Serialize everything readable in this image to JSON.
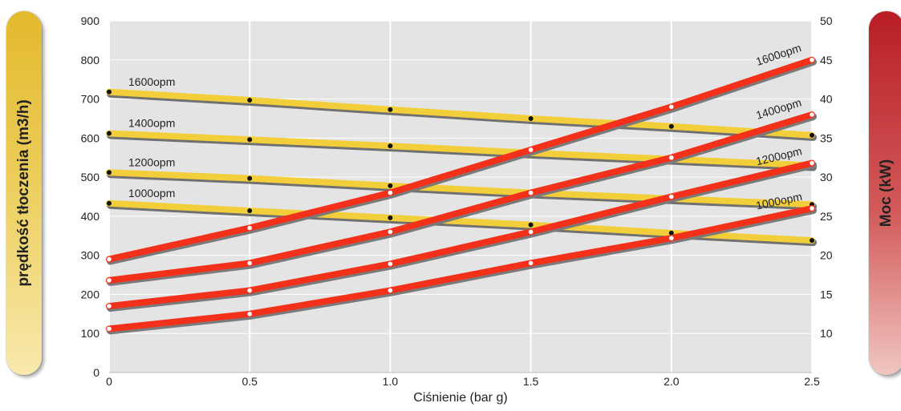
{
  "left_panel_label": "prędkość tłoczenia (m3/h)",
  "right_panel_label": "Moc (kW)",
  "chart_data": {
    "type": "line",
    "xlabel": "Ciśnienie (bar g)",
    "x": [
      0,
      0.5,
      1.0,
      1.5,
      2.0,
      2.5
    ],
    "x_tick_labels": [
      "0",
      "0.5",
      "1.0",
      "1.5",
      "2.0",
      "2.5"
    ],
    "y_left_range": [
      0,
      900
    ],
    "y_left_ticks": [
      "0",
      "100",
      "200",
      "300",
      "400",
      "500",
      "600",
      "700",
      "800",
      "900"
    ],
    "y_right_range": [
      5,
      50
    ],
    "y_right_ticks": [
      "10",
      "15",
      "20",
      "25",
      "30",
      "35",
      "40",
      "45",
      "50"
    ],
    "grid": true,
    "flow_color": "#f2cf3a",
    "power_color": "#f3301a",
    "flow_series": [
      {
        "name": "1600opm",
        "values": [
          718,
          697,
          673,
          650,
          630,
          607
        ]
      },
      {
        "name": "1400opm",
        "values": [
          612,
          596,
          580,
          562,
          546,
          530
        ]
      },
      {
        "name": "1200opm",
        "values": [
          512,
          497,
          478,
          460,
          445,
          430
        ]
      },
      {
        "name": "1000opm",
        "values": [
          433,
          414,
          396,
          378,
          357,
          338
        ]
      }
    ],
    "power_series": [
      {
        "name": "1600opm",
        "values": [
          19.5,
          23.5,
          28.0,
          33.5,
          39.0,
          45.0
        ]
      },
      {
        "name": "1400opm",
        "values": [
          16.8,
          19.0,
          23.0,
          28.0,
          32.5,
          38.0
        ]
      },
      {
        "name": "1200opm",
        "values": [
          13.5,
          15.5,
          18.9,
          23.0,
          27.5,
          31.8
        ]
      },
      {
        "name": "1000opm",
        "values": [
          10.6,
          12.5,
          15.5,
          19.0,
          22.2,
          26.0
        ]
      }
    ]
  }
}
